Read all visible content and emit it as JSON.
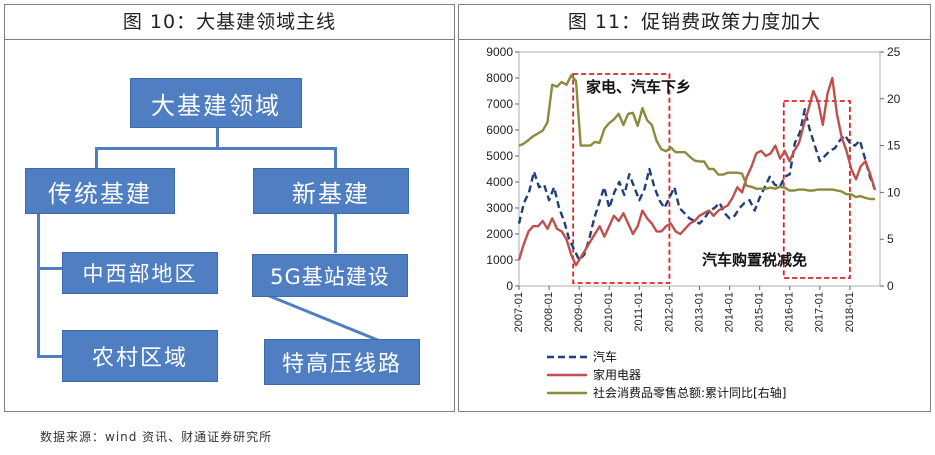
{
  "left_panel": {
    "title": "图 10：大基建领域主线",
    "root": "大基建领域",
    "branches": [
      {
        "label": "传统基建",
        "children": [
          "中西部地区",
          "农村区域"
        ]
      },
      {
        "label": "新基建",
        "children": [
          "5G基站建设",
          "特高压线路"
        ]
      }
    ]
  },
  "right_panel": {
    "title": "图 11：促销费政策力度加大"
  },
  "source": "数据来源：wind 资讯、财通证券研究所",
  "chart_data": {
    "type": "line",
    "title": "",
    "x_start": "2007-01",
    "x_ticks": [
      "2007-01",
      "2008-01",
      "2009-01",
      "2010-01",
      "2011-01",
      "2012-01",
      "2013-01",
      "2014-01",
      "2015-01",
      "2016-01",
      "2017-01",
      "2018-01"
    ],
    "y_left_ticks": [
      0,
      1000,
      2000,
      3000,
      4000,
      5000,
      6000,
      7000,
      8000,
      9000
    ],
    "y_right_ticks": [
      0,
      5,
      10,
      15,
      20,
      25
    ],
    "ylim_left": [
      0,
      9000
    ],
    "ylim_right": [
      0,
      25
    ],
    "annotations": [
      {
        "text": "家电、汽车下乡",
        "period": [
          "2009-01",
          "2011-12"
        ]
      },
      {
        "text": "汽车购置税减免",
        "period": [
          "2016-01",
          "2017-12"
        ]
      }
    ],
    "legend_position": "bottom",
    "colors": {
      "auto": "#1f3f7a",
      "appliance": "#c0504d",
      "retail": "#8c8a3c",
      "highlight": "#e02020"
    },
    "series": [
      {
        "name": "汽车",
        "axis": "left",
        "style": "dashed",
        "values": [
          2400,
          3200,
          3600,
          4400,
          3800,
          3900,
          3300,
          3800,
          3000,
          2500,
          1800,
          1400,
          1000,
          1200,
          1800,
          2600,
          3200,
          3800,
          3000,
          3600,
          4000,
          3500,
          4300,
          3800,
          3300,
          3700,
          4500,
          3800,
          3300,
          3000,
          3400,
          3800,
          3000,
          2800,
          2600,
          2500,
          2400,
          2600,
          2900,
          3000,
          3200,
          2800,
          2600,
          2700,
          3000,
          3200,
          3300,
          2900,
          3400,
          3800,
          4200,
          3900,
          3800,
          4200,
          4300,
          5500,
          5900,
          6800,
          6000,
          5400,
          4800,
          5000,
          5200,
          5300,
          5600,
          5800,
          5500,
          5400,
          5600,
          4900,
          4200,
          3700
        ]
      },
      {
        "name": "家用电器",
        "axis": "left",
        "style": "solid",
        "values": [
          1000,
          1600,
          2100,
          2300,
          2300,
          2500,
          2200,
          2600,
          2200,
          2100,
          1800,
          1200,
          800,
          1100,
          1400,
          1700,
          2000,
          2300,
          1900,
          2300,
          2700,
          2500,
          2800,
          2400,
          2000,
          2300,
          2900,
          2600,
          2400,
          2100,
          2100,
          2300,
          2400,
          2100,
          2000,
          2200,
          2400,
          2500,
          2700,
          2800,
          2900,
          2700,
          2900,
          3000,
          3100,
          3400,
          3800,
          3600,
          4200,
          4600,
          5100,
          5200,
          5000,
          5100,
          5400,
          4900,
          5200,
          4800,
          5200,
          5500,
          6200,
          6800,
          7500,
          7100,
          6200,
          7400,
          8000,
          6600,
          5700,
          5200,
          4500,
          4100,
          4600,
          4800,
          4300,
          3700
        ]
      },
      {
        "name": "社会消费品零售总额:累计同比[右轴]",
        "axis": "right",
        "style": "solid",
        "values": [
          15,
          15.2,
          15.6,
          16,
          16.3,
          16.6,
          17.5,
          21.5,
          21.3,
          21.8,
          21.5,
          22.5,
          21.9,
          15,
          15,
          15,
          15.4,
          15.3,
          16.8,
          17.4,
          17.8,
          18.4,
          17.2,
          18.4,
          18.5,
          17.1,
          19,
          17.7,
          17.2,
          15.5,
          14.6,
          14.4,
          14.8,
          14.3,
          14.3,
          14.3,
          13.8,
          13.4,
          13.3,
          13.3,
          12.5,
          12.5,
          11.9,
          11.9,
          12.1,
          12.1,
          12.1,
          12,
          10.7,
          10.6,
          10.4,
          10.4,
          10.4,
          10.5,
          10.4,
          10.6,
          10.5,
          10.2,
          10.2,
          10.3,
          10.3,
          10.2,
          10.2,
          10.3,
          10.3,
          10.3,
          10.3,
          10.2,
          10.1,
          9.8,
          9.8,
          9.5,
          9.6,
          9.4,
          9.3,
          9.3
        ]
      }
    ]
  }
}
